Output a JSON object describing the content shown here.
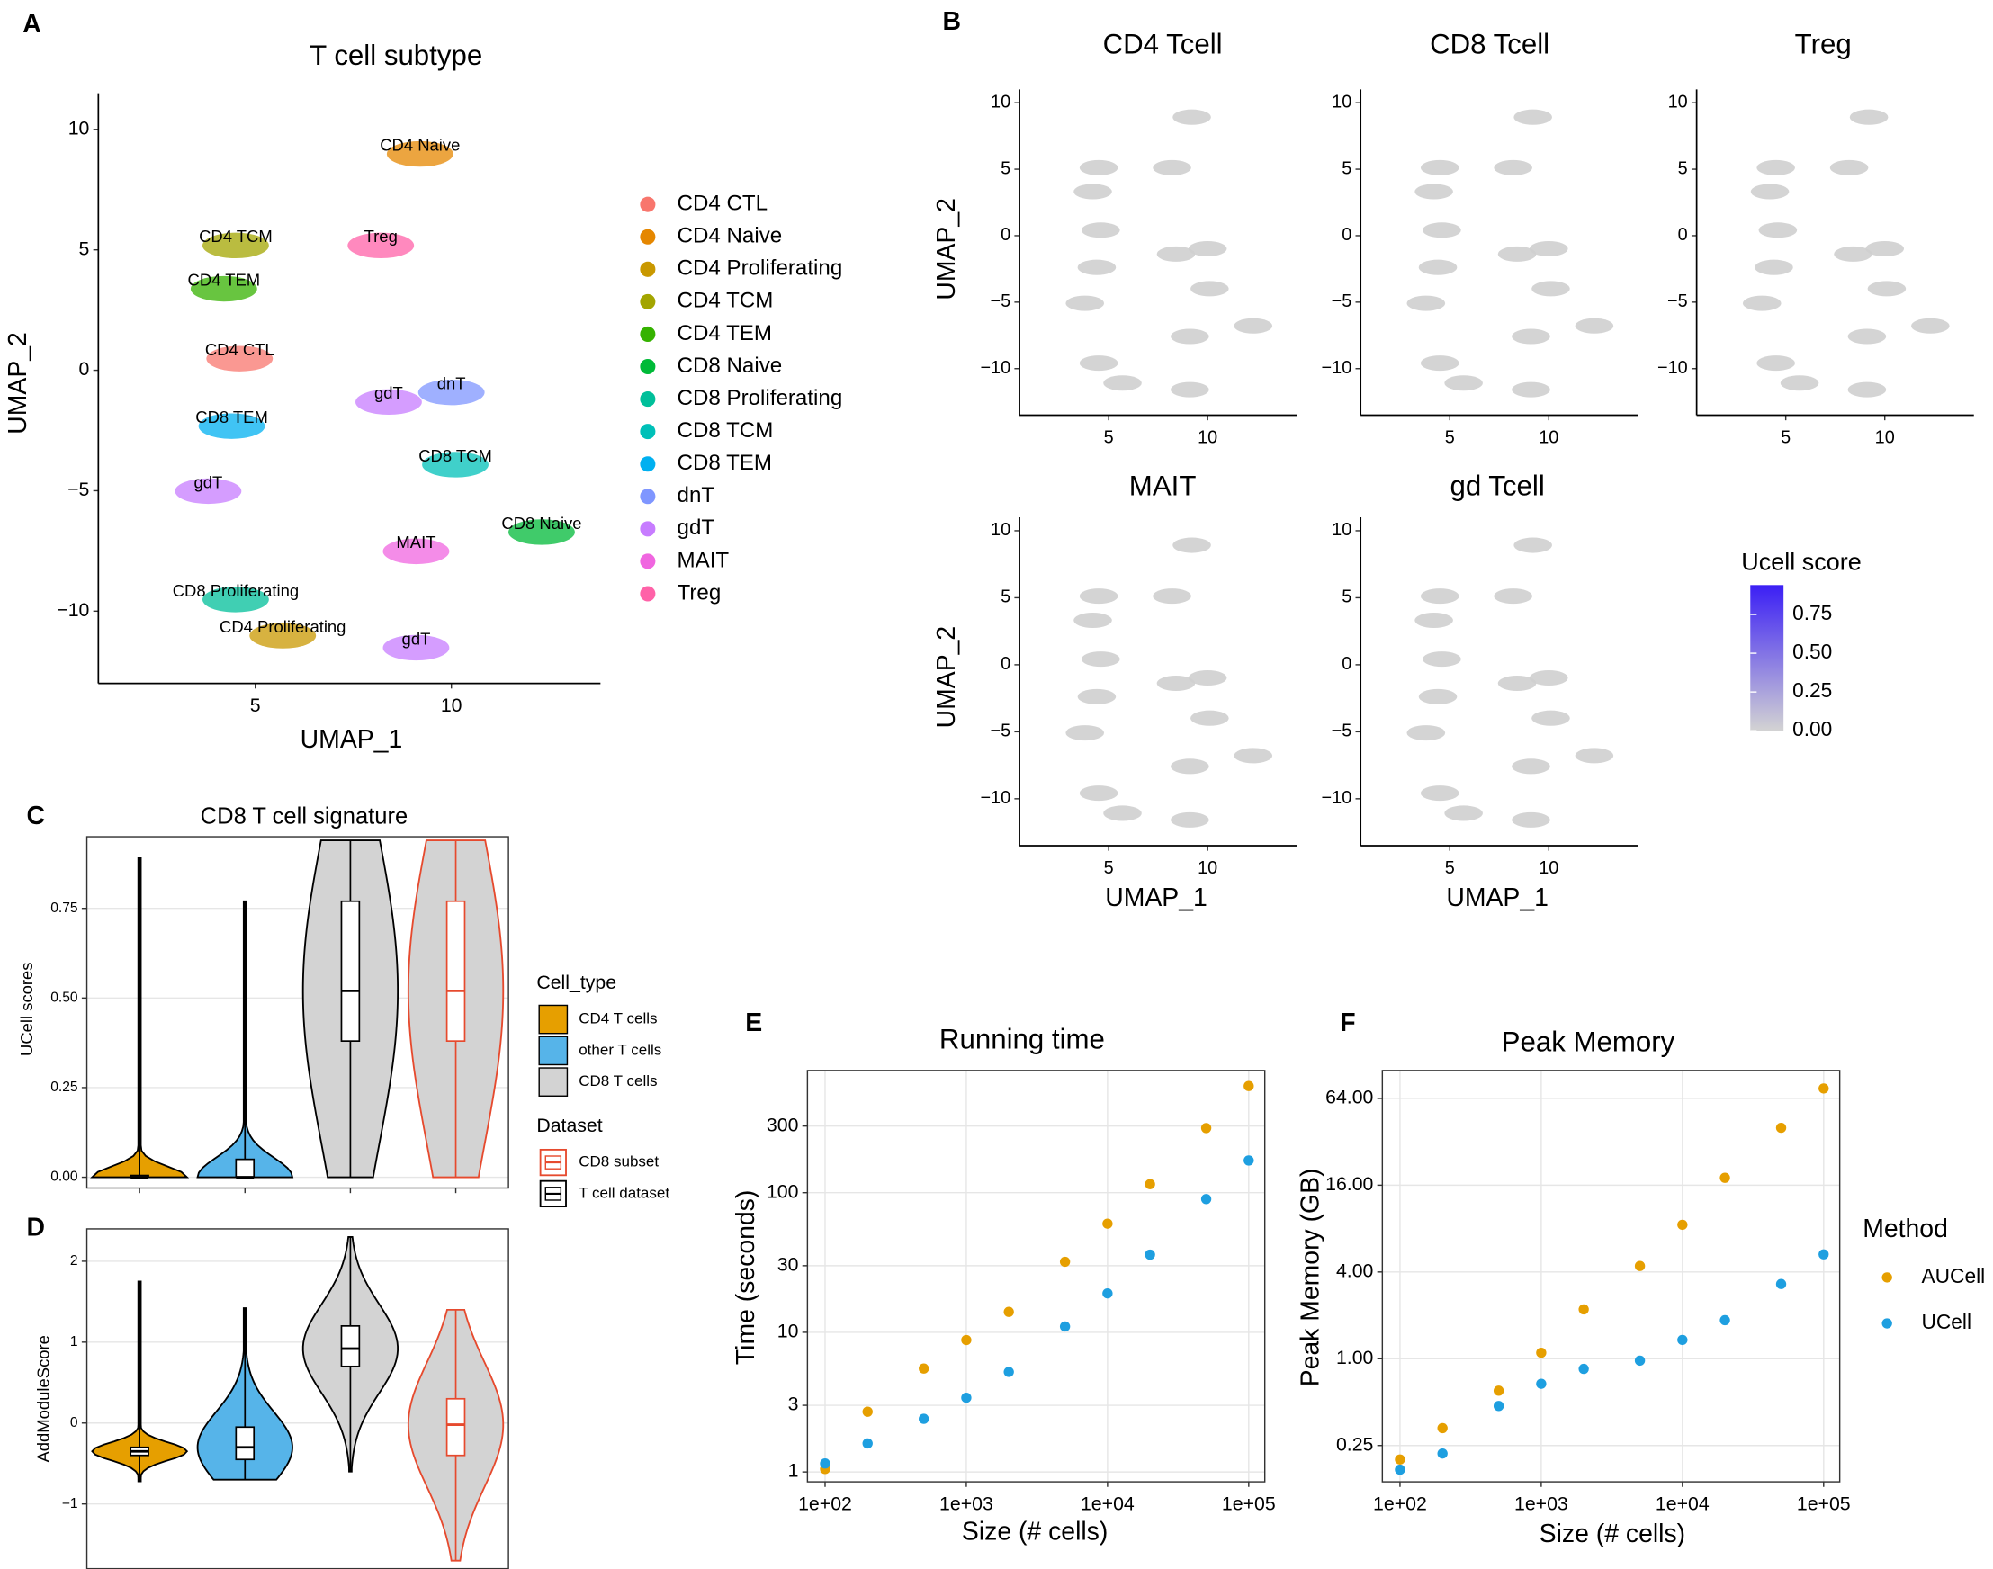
{
  "chart_data": [
    {
      "type": "umap",
      "panel": "A",
      "title": "T cell subtype",
      "x_label": "UMAP_1",
      "y_label": "UMAP_2",
      "xlim": [
        1,
        13.8
      ],
      "ylim": [
        -13,
        11.5
      ],
      "xticks": [
        5,
        10
      ],
      "yticks": [
        {
          "value": -10,
          "label": "−10"
        },
        {
          "value": -5,
          "label": "−5"
        },
        0,
        5,
        10
      ],
      "clusters": [
        {
          "name": "CD4 CTL",
          "color": "#f8766d"
        },
        {
          "name": "CD4 Naive",
          "color": "#e58700"
        },
        {
          "name": "CD4 Proliferating",
          "color": "#c99800"
        },
        {
          "name": "CD4 TCM",
          "color": "#a3a500"
        },
        {
          "name": "CD4 TEM",
          "color": "#35b200"
        },
        {
          "name": "CD8 Naive",
          "color": "#00ba38"
        },
        {
          "name": "CD8 Proliferating",
          "color": "#00bf9a"
        },
        {
          "name": "CD8 TCM",
          "color": "#00c0b8"
        },
        {
          "name": "CD8 TEM",
          "color": "#00b0f0"
        },
        {
          "name": "dnT",
          "color": "#7f96ff"
        },
        {
          "name": "gdT",
          "color": "#c77cff"
        },
        {
          "name": "MAIT",
          "color": "#f066e0"
        },
        {
          "name": "Treg",
          "color": "#ff62a8"
        }
      ],
      "annotations": [
        {
          "text": "CD4 Naive",
          "x": 9.2,
          "y": 9.3
        },
        {
          "text": "CD4 TCM",
          "x": 4.5,
          "y": 5.5
        },
        {
          "text": "Treg",
          "x": 8.2,
          "y": 5.5
        },
        {
          "text": "CD4 TEM",
          "x": 4.2,
          "y": 3.7
        },
        {
          "text": "CD4 CTL",
          "x": 4.6,
          "y": 0.8
        },
        {
          "text": "gdT",
          "x": 8.4,
          "y": -1.0
        },
        {
          "text": "dnT",
          "x": 10.0,
          "y": -0.6
        },
        {
          "text": "CD8 TEM",
          "x": 4.4,
          "y": -2.0
        },
        {
          "text": "CD8 TCM",
          "x": 10.1,
          "y": -3.6
        },
        {
          "text": "gdT",
          "x": 3.8,
          "y": -4.7
        },
        {
          "text": "CD8 Naive",
          "x": 12.3,
          "y": -6.4
        },
        {
          "text": "MAIT",
          "x": 9.1,
          "y": -7.2
        },
        {
          "text": "CD8 Proliferating",
          "x": 4.5,
          "y": -9.2
        },
        {
          "text": "CD4 Proliferating",
          "x": 5.7,
          "y": -10.7
        },
        {
          "text": "gdT",
          "x": 9.1,
          "y": -11.2
        }
      ]
    },
    {
      "type": "umap-feature",
      "panel": "B",
      "title": "CD4 Tcell",
      "y_label": "UMAP_2",
      "xlim": [
        0.5,
        14.5
      ],
      "ylim": [
        -13.5,
        11
      ],
      "xticks": [
        5,
        10
      ],
      "yticks": [
        {
          "value": -10,
          "label": "−10"
        },
        {
          "value": -5,
          "label": "−5"
        },
        0,
        5,
        10
      ]
    },
    {
      "type": "umap-feature",
      "title": "CD8 Tcell",
      "xlim": [
        0.5,
        14.5
      ],
      "ylim": [
        -13.5,
        11
      ],
      "xticks": [
        5,
        10
      ],
      "yticks": [
        {
          "value": -10,
          "label": "−10"
        },
        {
          "value": -5,
          "label": "−5"
        },
        0,
        5,
        10
      ]
    },
    {
      "type": "umap-feature",
      "title": "Treg",
      "xlim": [
        0.5,
        14.5
      ],
      "ylim": [
        -13.5,
        11
      ],
      "xticks": [
        5,
        10
      ],
      "yticks": [
        {
          "value": -10,
          "label": "−10"
        },
        {
          "value": -5,
          "label": "−5"
        },
        0,
        5,
        10
      ]
    },
    {
      "type": "umap-feature",
      "title": "MAIT",
      "x_label": "UMAP_1",
      "y_label": "UMAP_2",
      "xlim": [
        0.5,
        14.5
      ],
      "ylim": [
        -13.5,
        11
      ],
      "xticks": [
        5,
        10
      ],
      "yticks": [
        {
          "value": -10,
          "label": "−10"
        },
        {
          "value": -5,
          "label": "−5"
        },
        0,
        5,
        10
      ]
    },
    {
      "type": "umap-feature",
      "title": "gd Tcell",
      "x_label": "UMAP_1",
      "xlim": [
        0.5,
        14.5
      ],
      "ylim": [
        -13.5,
        11
      ],
      "xticks": [
        5,
        10
      ],
      "yticks": [
        {
          "value": -10,
          "label": "−10"
        },
        {
          "value": -5,
          "label": "−5"
        },
        0,
        5,
        10
      ],
      "colorbar": {
        "title": "Ucell score",
        "low": "#d3d3d3",
        "high": "#3b1ff5",
        "lim": [
          0,
          0.94
        ],
        "ticks": [
          {
            "value": 0,
            "label": "0.00"
          },
          {
            "value": 0.25,
            "label": "0.25"
          },
          {
            "value": 0.5,
            "label": "0.50"
          },
          {
            "value": 0.75,
            "label": "0.75"
          }
        ]
      }
    },
    {
      "type": "violin",
      "panel": "C",
      "title": "CD8 T cell signature",
      "y_label": "UCell scores",
      "grid": true,
      "ylim": [
        -0.03,
        0.95
      ],
      "yticks": [
        {
          "value": 0,
          "label": "0.00"
        },
        {
          "value": 0.25,
          "label": "0.25"
        },
        {
          "value": 0.5,
          "label": "0.50"
        },
        {
          "value": 0.75,
          "label": "0.75"
        }
      ],
      "categories": [
        null,
        null,
        null,
        null
      ],
      "groups": [
        {
          "fill": "#e69f00",
          "stroke": "#000000",
          "min": 0,
          "q1": 0,
          "median": 0,
          "q3": 0.005,
          "max": 0.89
        },
        {
          "fill": "#56b4e9",
          "stroke": "#000000",
          "min": 0,
          "q1": 0,
          "median": 0,
          "q3": 0.05,
          "max": 0.77
        },
        {
          "fill": "#d3d3d3",
          "stroke": "#000000",
          "min": 0,
          "q1": 0.38,
          "median": 0.52,
          "q3": 0.77,
          "max": 0.94
        },
        {
          "fill": "#d3d3d3",
          "stroke": "#e64a2e",
          "min": 0,
          "q1": 0.38,
          "median": 0.52,
          "q3": 0.77,
          "max": 0.94
        }
      ],
      "legend": [
        {
          "title": "Cell_type",
          "items": [
            {
              "label": "CD4 T cells",
              "fill": "#e69f00"
            },
            {
              "label": "other T cells",
              "fill": "#56b4e9"
            },
            {
              "label": "CD8 T cells",
              "fill": "#d3d3d3"
            }
          ]
        },
        {
          "title": "Dataset",
          "items": [
            {
              "label": "CD8 subset",
              "stroke": "#e64a2e"
            },
            {
              "label": "T cell dataset",
              "stroke": "#000000"
            }
          ]
        }
      ]
    },
    {
      "type": "violin",
      "panel": "D",
      "y_label": "AddModuleScore",
      "grid": true,
      "ylim": [
        -1.8,
        2.4
      ],
      "yticks": [
        {
          "value": -1,
          "label": "−1"
        },
        0,
        1,
        2
      ],
      "categories": [
        null,
        null,
        null,
        null
      ],
      "groups": [
        {
          "fill": "#e69f00",
          "stroke": "#000000",
          "min": -0.72,
          "q1": -0.4,
          "median": -0.35,
          "q3": -0.3,
          "max": 1.75
        },
        {
          "fill": "#56b4e9",
          "stroke": "#000000",
          "min": -0.7,
          "q1": -0.45,
          "median": -0.3,
          "q3": -0.05,
          "max": 1.42
        },
        {
          "fill": "#d3d3d3",
          "stroke": "#000000",
          "min": -0.6,
          "q1": 0.7,
          "median": 0.92,
          "q3": 1.2,
          "max": 2.3
        },
        {
          "fill": "#d3d3d3",
          "stroke": "#e64a2e",
          "min": -1.7,
          "q1": -0.4,
          "median": -0.02,
          "q3": 0.3,
          "max": 1.4
        }
      ]
    },
    {
      "type": "scatter",
      "panel": "E",
      "title": "Running time",
      "x_label": "Size (# cells)",
      "y_label": "Time (seconds)",
      "grid": true,
      "xlog": true,
      "ylog": true,
      "xlim": [
        75,
        130000
      ],
      "ylim": [
        0.85,
        750
      ],
      "xticks": [
        {
          "value": 100,
          "label": "1e+02"
        },
        {
          "value": 1000,
          "label": "1e+03"
        },
        {
          "value": 10000,
          "label": "1e+04"
        },
        {
          "value": 100000,
          "label": "1e+05"
        }
      ],
      "yticks": [
        1,
        3,
        10,
        30,
        100,
        300
      ],
      "x": [
        100,
        200,
        500,
        1000,
        2000,
        5000,
        10000,
        20000,
        50000,
        100000
      ],
      "series": [
        {
          "color": "#e69f00",
          "values": [
            1.05,
            2.7,
            5.5,
            8.8,
            14,
            32,
            60,
            115,
            290,
            580
          ]
        },
        {
          "color": "#1e9fe0",
          "values": [
            1.15,
            1.6,
            2.4,
            3.4,
            5.2,
            11,
            19,
            36,
            90,
            170
          ]
        }
      ]
    },
    {
      "type": "scatter",
      "panel": "F",
      "title": "Peak Memory",
      "x_label": "Size (# cells)",
      "y_label": "Peak Memory (GB)",
      "grid": true,
      "xlog": true,
      "ylog": true,
      "xlim": [
        75,
        130000
      ],
      "ylim": [
        0.14,
        100
      ],
      "xticks": [
        {
          "value": 100,
          "label": "1e+02"
        },
        {
          "value": 1000,
          "label": "1e+03"
        },
        {
          "value": 10000,
          "label": "1e+04"
        },
        {
          "value": 100000,
          "label": "1e+05"
        }
      ],
      "yticks": [
        {
          "value": 0.25,
          "label": "0.25"
        },
        {
          "value": 1,
          "label": "1.00"
        },
        {
          "value": 4,
          "label": "4.00"
        },
        {
          "value": 16,
          "label": "16.00"
        },
        {
          "value": 64,
          "label": "64.00"
        }
      ],
      "x": [
        100,
        200,
        500,
        1000,
        2000,
        5000,
        10000,
        20000,
        50000,
        100000
      ],
      "legend_title": "Method",
      "series": [
        {
          "name": "AUCell",
          "color": "#e69f00",
          "values": [
            0.2,
            0.33,
            0.6,
            1.1,
            2.2,
            4.4,
            8.5,
            18,
            40,
            75
          ]
        },
        {
          "name": "UCell",
          "color": "#1e9fe0",
          "values": [
            0.17,
            0.22,
            0.47,
            0.67,
            0.85,
            0.97,
            1.35,
            1.85,
            3.3,
            5.3
          ]
        }
      ]
    }
  ]
}
